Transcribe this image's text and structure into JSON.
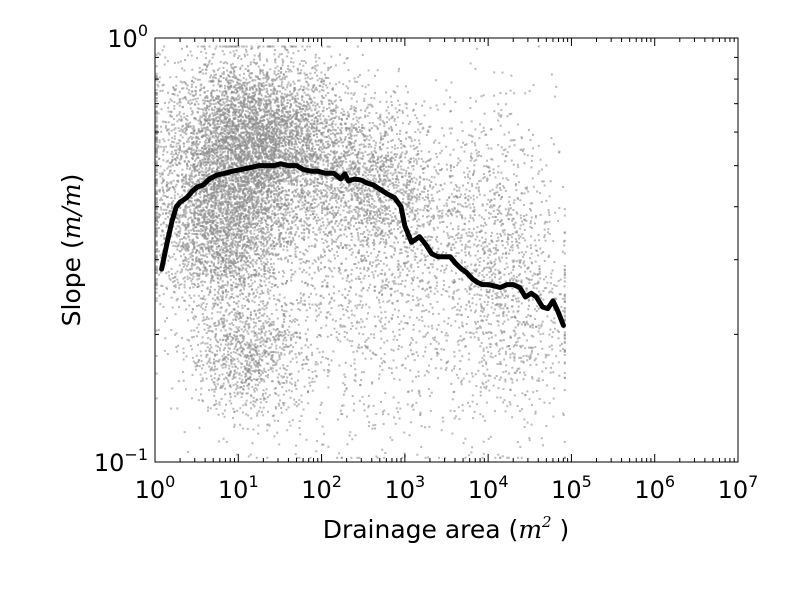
{
  "chart_data": {
    "type": "scatter",
    "title": "",
    "xlabel": "Drainage area",
    "xlabel_unit": "m",
    "xlabel_unit_exp": "2",
    "ylabel": "Slope",
    "ylabel_unit": "m/m",
    "x_scale": "log",
    "y_scale": "log",
    "xlim": [
      1,
      10000000
    ],
    "ylim": [
      0.1,
      1
    ],
    "x_ticks": [
      {
        "base": "10",
        "exp": "0",
        "value": 1
      },
      {
        "base": "10",
        "exp": "1",
        "value": 10
      },
      {
        "base": "10",
        "exp": "2",
        "value": 100
      },
      {
        "base": "10",
        "exp": "3",
        "value": 1000
      },
      {
        "base": "10",
        "exp": "4",
        "value": 10000
      },
      {
        "base": "10",
        "exp": "5",
        "value": 100000
      },
      {
        "base": "10",
        "exp": "6",
        "value": 1000000
      },
      {
        "base": "10",
        "exp": "7",
        "value": 10000000
      }
    ],
    "y_ticks": [
      {
        "base": "10",
        "exp": "0",
        "value": 1
      },
      {
        "base": "10",
        "exp": "−1",
        "value": 0.1
      }
    ],
    "grid": false,
    "legend": "none",
    "colors": {
      "scatter": "#8c8c8c",
      "line": "#000000",
      "frame": "#000000"
    },
    "series": [
      {
        "type": "line",
        "x": [
          1.2,
          1.4,
          1.6,
          1.8,
          2.0,
          2.4,
          2.8,
          3.2,
          3.8,
          4.5,
          5.5,
          7,
          8.5,
          11,
          14,
          18,
          22,
          27,
          32,
          40,
          50,
          60,
          75,
          90,
          110,
          140,
          170,
          190,
          210,
          250,
          300,
          350,
          420,
          500,
          600,
          750,
          900,
          1000,
          1200,
          1500,
          1800,
          2100,
          2500,
          3000,
          3500,
          4000,
          4800,
          5500,
          6500,
          7500,
          8500,
          10000,
          12000,
          14000,
          17000,
          20000,
          24000,
          28000,
          33000,
          38000,
          45000,
          52000,
          60000,
          70000,
          80000
        ],
        "y": [
          0.285,
          0.33,
          0.37,
          0.4,
          0.41,
          0.42,
          0.435,
          0.445,
          0.45,
          0.465,
          0.475,
          0.48,
          0.485,
          0.49,
          0.495,
          0.5,
          0.5,
          0.5,
          0.505,
          0.5,
          0.5,
          0.49,
          0.485,
          0.485,
          0.48,
          0.48,
          0.465,
          0.478,
          0.46,
          0.465,
          0.462,
          0.455,
          0.45,
          0.44,
          0.43,
          0.42,
          0.4,
          0.36,
          0.33,
          0.34,
          0.325,
          0.31,
          0.305,
          0.305,
          0.305,
          0.295,
          0.285,
          0.28,
          0.27,
          0.265,
          0.262,
          0.262,
          0.26,
          0.258,
          0.262,
          0.262,
          0.258,
          0.245,
          0.25,
          0.245,
          0.232,
          0.23,
          0.24,
          0.225,
          0.21
        ]
      }
    ],
    "scatter_description": "dense cloud of gray points, densest from 2 to 300 m^2 at slope 0.3–0.9, thinning toward 80000 m^2"
  }
}
